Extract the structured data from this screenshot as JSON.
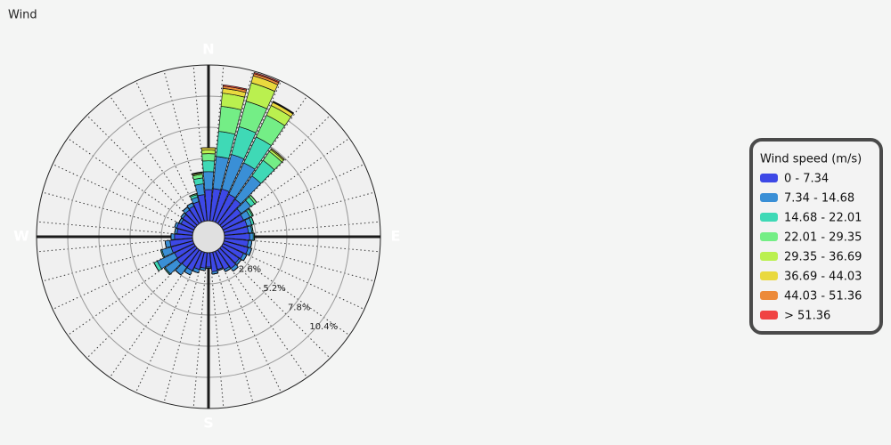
{
  "chart_data": {
    "type": "windrose",
    "title": "Wind",
    "legend_title": "Wind speed (m/s)",
    "x": [
      0,
      10,
      20,
      30,
      40,
      50,
      60,
      70,
      80,
      90,
      100,
      110,
      120,
      130,
      140,
      150,
      160,
      170,
      180,
      190,
      200,
      210,
      220,
      230,
      240,
      250,
      260,
      270,
      280,
      290,
      300,
      310,
      320,
      330,
      340,
      350
    ],
    "xticks": [
      {
        "value": 0,
        "label": "N"
      },
      {
        "value": 90,
        "label": "E"
      },
      {
        "value": 180,
        "label": "S"
      },
      {
        "value": 270,
        "label": "W"
      }
    ],
    "rlim": [
      0,
      13
    ],
    "rticks": [
      {
        "value": 2.6,
        "label": "2.6%"
      },
      {
        "value": 5.2,
        "label": "5.2%"
      },
      {
        "value": 7.8,
        "label": "7.8%"
      },
      {
        "value": 10.4,
        "label": "10.4%"
      }
    ],
    "series": [
      {
        "name": "0 - 7.34",
        "color": "#3d48e6",
        "values": [
          2.6,
          2.7,
          2.8,
          2.6,
          2.5,
          2.0,
          1.9,
          2.0,
          2.0,
          2.1,
          2.0,
          2.1,
          1.9,
          1.8,
          1.9,
          1.7,
          1.5,
          1.6,
          1.2,
          1.3,
          1.5,
          1.8,
          1.8,
          1.9,
          1.8,
          1.9,
          1.9,
          1.5,
          1.3,
          1.4,
          1.2,
          1.3,
          1.4,
          1.5,
          1.7,
          2.2
        ]
      },
      {
        "name": "7.34 - 14.68",
        "color": "#3a8fd6",
        "values": [
          1.5,
          2.7,
          3.0,
          2.9,
          2.4,
          1.0,
          0.6,
          0.4,
          0.3,
          0.3,
          0.3,
          0.3,
          0.3,
          0.2,
          0.3,
          0.2,
          0.1,
          0.2,
          0.1,
          0.2,
          0.3,
          0.4,
          0.8,
          1.2,
          1.6,
          0.8,
          0.4,
          0.3,
          0.2,
          0.2,
          0.2,
          0.2,
          0.3,
          0.3,
          0.4,
          0.9
        ]
      },
      {
        "name": "14.68 - 22.01",
        "color": "#3fd9b6",
        "values": [
          0.9,
          2.1,
          2.4,
          2.4,
          1.6,
          0.4,
          0.2,
          0.2,
          0.1,
          0.1,
          0,
          0,
          0,
          0,
          0,
          0,
          0,
          0,
          0,
          0,
          0,
          0,
          0,
          0.1,
          0.3,
          0.1,
          0,
          0,
          0,
          0,
          0,
          0,
          0,
          0,
          0.2,
          0.5
        ]
      },
      {
        "name": "22.01 - 29.35",
        "color": "#74ee86",
        "values": [
          0.6,
          2.1,
          2.2,
          2.0,
          0.9,
          0.2,
          0.1,
          0,
          0,
          0,
          0,
          0,
          0,
          0,
          0,
          0,
          0,
          0,
          0,
          0,
          0,
          0,
          0,
          0,
          0,
          0,
          0,
          0,
          0,
          0,
          0,
          0,
          0,
          0,
          0.1,
          0.3
        ]
      },
      {
        "name": "29.35 - 36.69",
        "color": "#baf04f",
        "values": [
          0.3,
          1.1,
          1.6,
          0.9,
          0.2,
          0,
          0,
          0,
          0,
          0,
          0,
          0,
          0,
          0,
          0,
          0,
          0,
          0,
          0,
          0,
          0,
          0,
          0,
          0,
          0,
          0,
          0,
          0,
          0,
          0,
          0,
          0,
          0,
          0,
          0,
          0.1
        ]
      },
      {
        "name": "36.69 - 44.03",
        "color": "#e9d93e",
        "values": [
          0.2,
          0.4,
          0.6,
          0.3,
          0.1,
          0,
          0,
          0,
          0,
          0,
          0,
          0,
          0,
          0,
          0,
          0,
          0,
          0,
          0,
          0,
          0,
          0,
          0,
          0,
          0,
          0,
          0,
          0,
          0,
          0,
          0,
          0,
          0,
          0,
          0,
          0.05
        ]
      },
      {
        "name": "44.03 - 51.36",
        "color": "#ec8a3a",
        "values": [
          0,
          0.2,
          0.2,
          0.05,
          0,
          0,
          0,
          0,
          0,
          0,
          0,
          0,
          0,
          0,
          0,
          0,
          0,
          0,
          0,
          0,
          0,
          0,
          0,
          0,
          0,
          0,
          0,
          0,
          0,
          0,
          0,
          0,
          0,
          0,
          0,
          0
        ]
      },
      {
        "name": "> 51.36",
        "color": "#f04343",
        "values": [
          0,
          0.1,
          0.1,
          0.05,
          0,
          0,
          0,
          0,
          0,
          0,
          0,
          0,
          0,
          0,
          0,
          0,
          0,
          0,
          0,
          0,
          0,
          0,
          0,
          0,
          0,
          0,
          0,
          0,
          0,
          0,
          0,
          0,
          0,
          0,
          0,
          0.05
        ]
      }
    ]
  }
}
